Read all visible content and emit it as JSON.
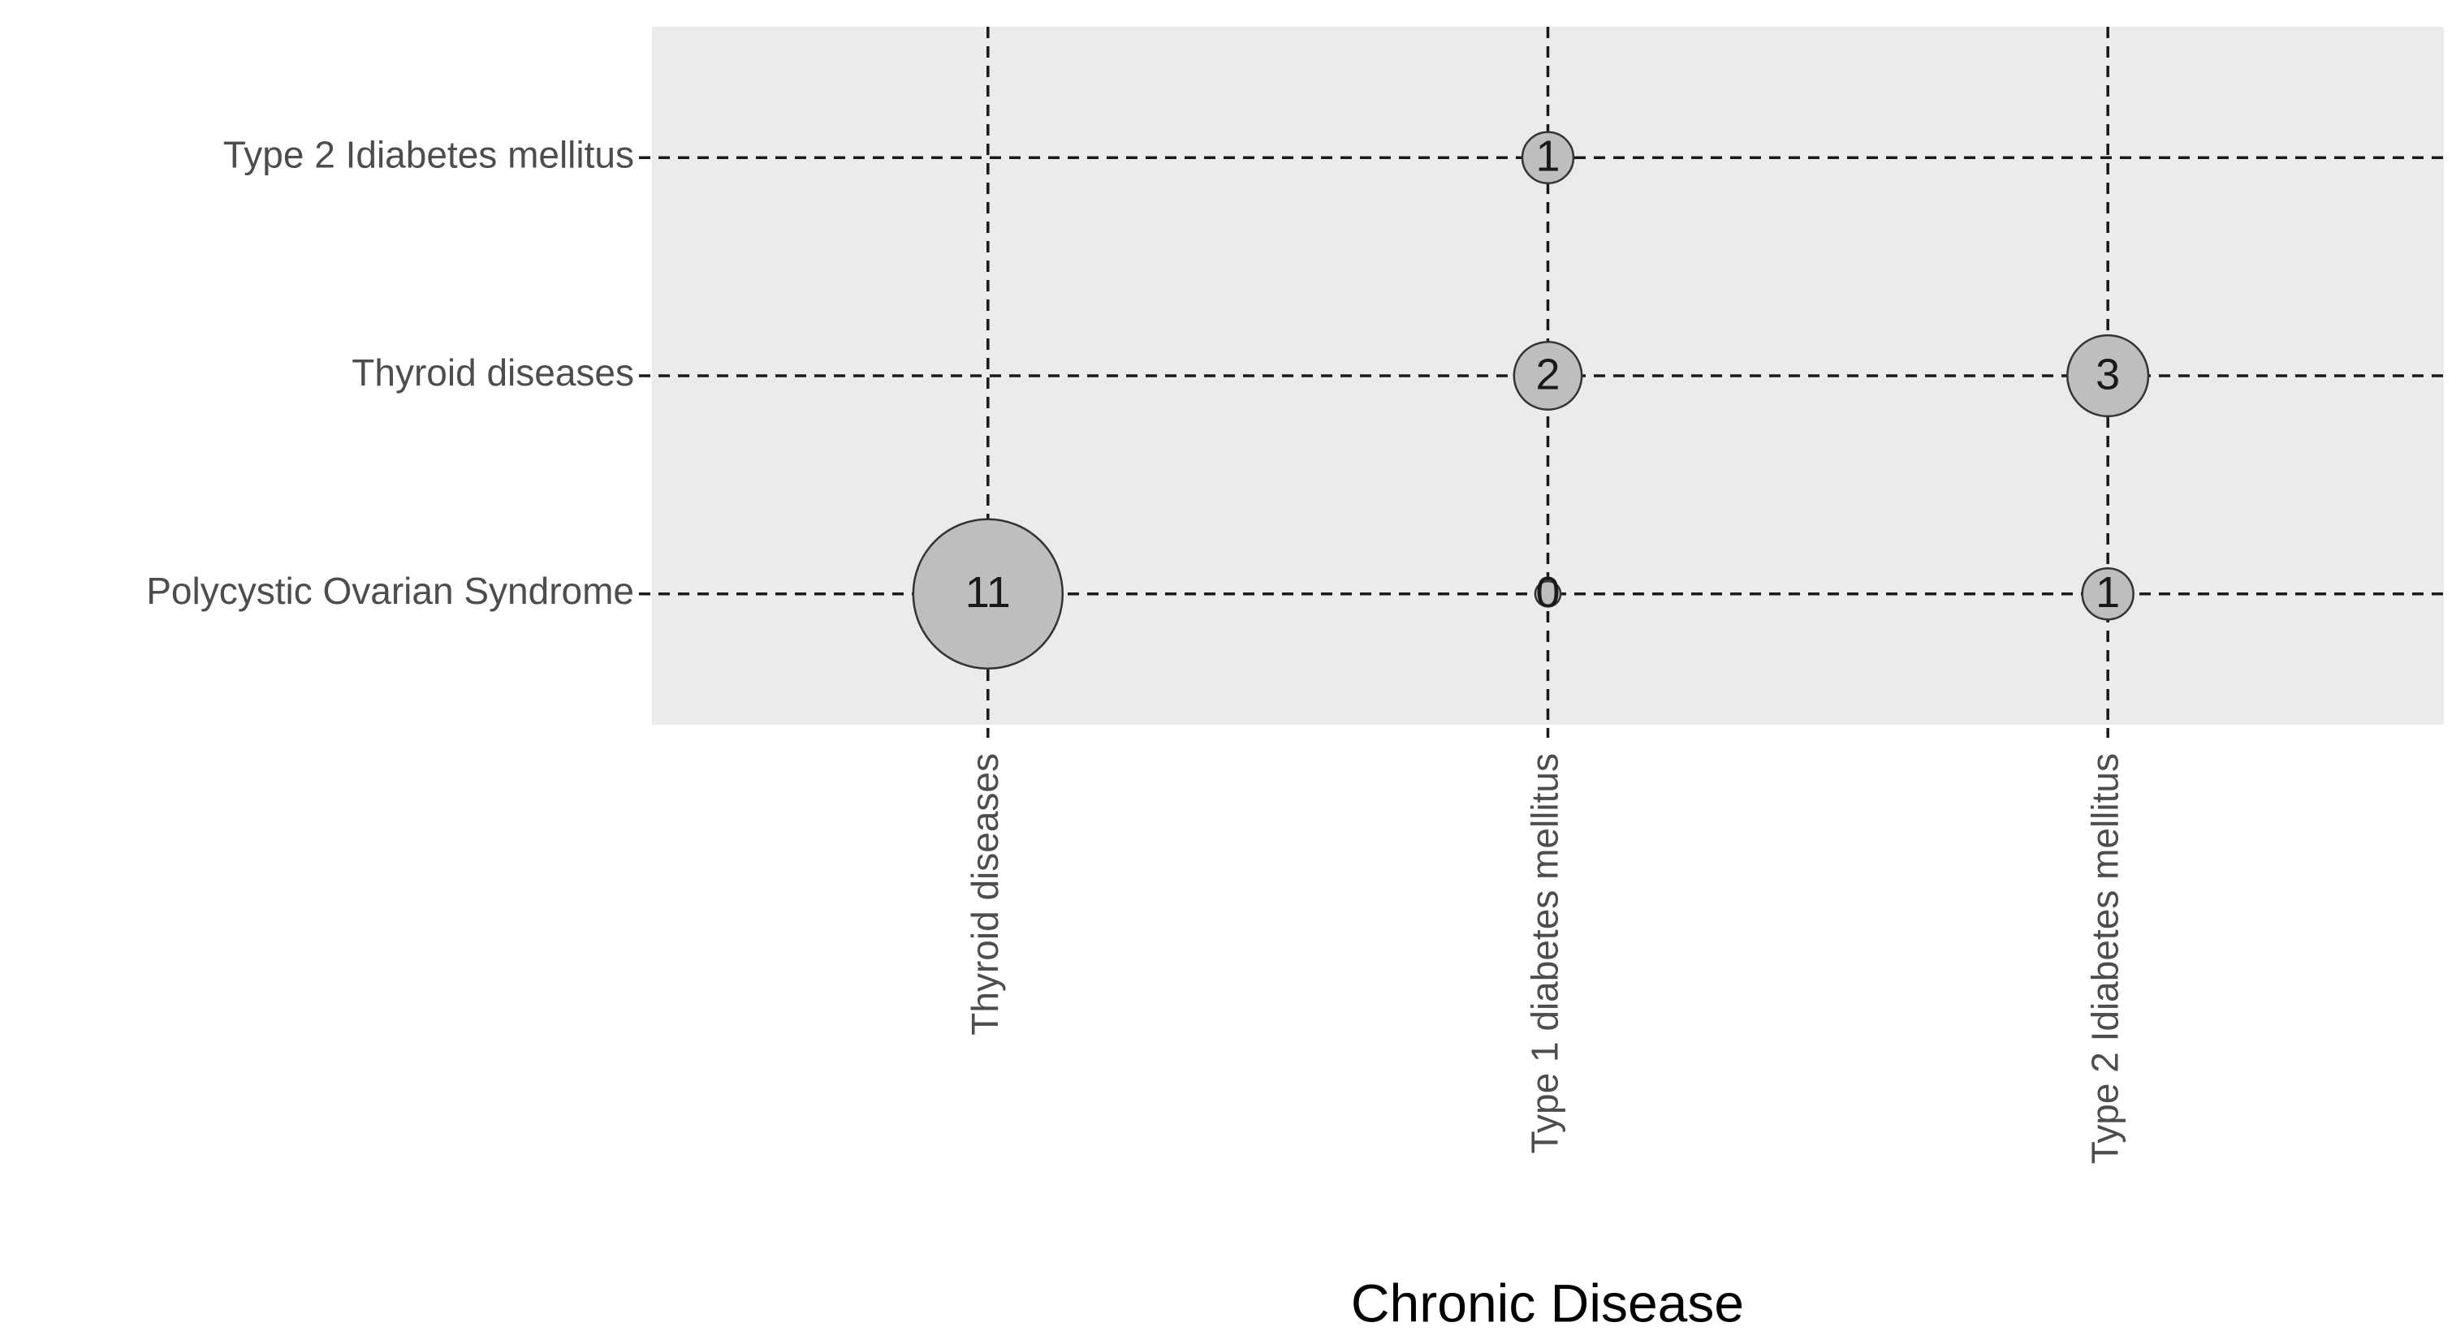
{
  "chart_data": {
    "type": "bubble",
    "x_label": "Chronic Disease",
    "categories": [
      "Thyroid diseases",
      "Type 1 diabetes mellitus",
      "Type 2 Idiabetes mellitus"
    ],
    "series": [
      {
        "name": "Polycystic Ovarian Syndrome",
        "values": [
          11,
          0,
          1
        ]
      },
      {
        "name": "Thyroid diseases",
        "values": [
          null,
          2,
          3
        ]
      },
      {
        "name": "Type 2 Idiabetes mellitus",
        "values": [
          null,
          1,
          null
        ]
      }
    ],
    "color": "#bebebe",
    "grid": true
  }
}
